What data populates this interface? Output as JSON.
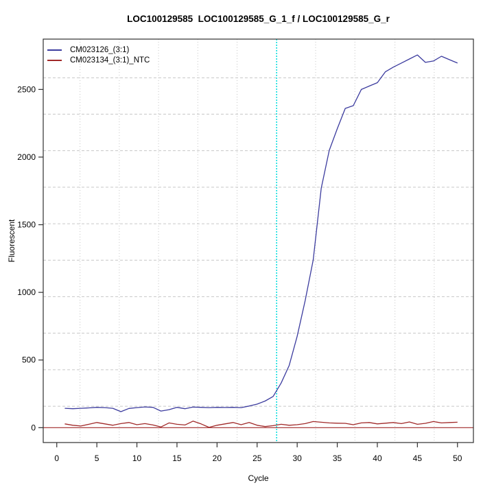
{
  "title": "LOC100129585  LOC100129585_G_1_f / LOC100129585_G_r",
  "chart_data": {
    "type": "line",
    "title": "LOC100129585  LOC100129585_G_1_f / LOC100129585_G_r",
    "xlabel": "Cycle",
    "ylabel": "Fluorescent",
    "legend_position": "top-left",
    "grid": true,
    "xlim": [
      -1.69,
      51.99
    ],
    "ylim": [
      -110,
      2872
    ],
    "xticks": [
      0,
      5,
      10,
      15,
      20,
      25,
      30,
      35,
      40,
      45,
      50
    ],
    "yticks": [
      0,
      500,
      1000,
      1500,
      2000,
      2500
    ],
    "grid_x": [
      2.9,
      7.8,
      12.7,
      17.6,
      22.5,
      27.4,
      32.3,
      37.2,
      42.2,
      47.1
    ],
    "grid_y": [
      158,
      428,
      698,
      968,
      1238,
      1507,
      1777,
      2047,
      2317,
      2586
    ],
    "threshold_line": {
      "x": 27.44,
      "color": "#00e0e0"
    },
    "zero_line": {
      "y": 0,
      "color": "#a02828"
    },
    "x": [
      1,
      2,
      3,
      4,
      5,
      6,
      7,
      8,
      9,
      10,
      11,
      12,
      13,
      14,
      15,
      16,
      17,
      18,
      19,
      20,
      21,
      22,
      23,
      24,
      25,
      26,
      27,
      28,
      29,
      30,
      31,
      32,
      33,
      34,
      35,
      36,
      37,
      38,
      39,
      40,
      41,
      42,
      43,
      44,
      45,
      46,
      47,
      48,
      49,
      50
    ],
    "series": [
      {
        "name": "CM023126_(3:1)",
        "color": "#3b3b9e",
        "values": [
          143,
          140,
          143,
          146,
          150,
          148,
          143,
          118,
          142,
          148,
          153,
          150,
          123,
          133,
          150,
          140,
          152,
          150,
          148,
          150,
          149,
          150,
          148,
          160,
          174,
          197,
          231,
          330,
          460,
          675,
          940,
          1240,
          1770,
          2050,
          2210,
          2360,
          2380,
          2500,
          2525,
          2550,
          2630,
          2665,
          2695,
          2725,
          2755,
          2700,
          2710,
          2745,
          2720,
          2695
        ]
      },
      {
        "name": "CM023134_(3:1)_NTC",
        "color": "#a02828",
        "values": [
          28,
          18,
          12,
          25,
          38,
          28,
          18,
          30,
          38,
          22,
          30,
          20,
          5,
          35,
          25,
          20,
          48,
          28,
          2,
          18,
          28,
          38,
          22,
          38,
          18,
          8,
          15,
          25,
          18,
          22,
          30,
          45,
          40,
          35,
          33,
          32,
          22,
          35,
          38,
          28,
          33,
          38,
          30,
          42,
          25,
          32,
          45,
          35,
          38,
          40
        ]
      }
    ],
    "colors": {
      "grid": "#c6c6c6",
      "box": "#2e2e2e",
      "background": "#ffffff"
    }
  }
}
